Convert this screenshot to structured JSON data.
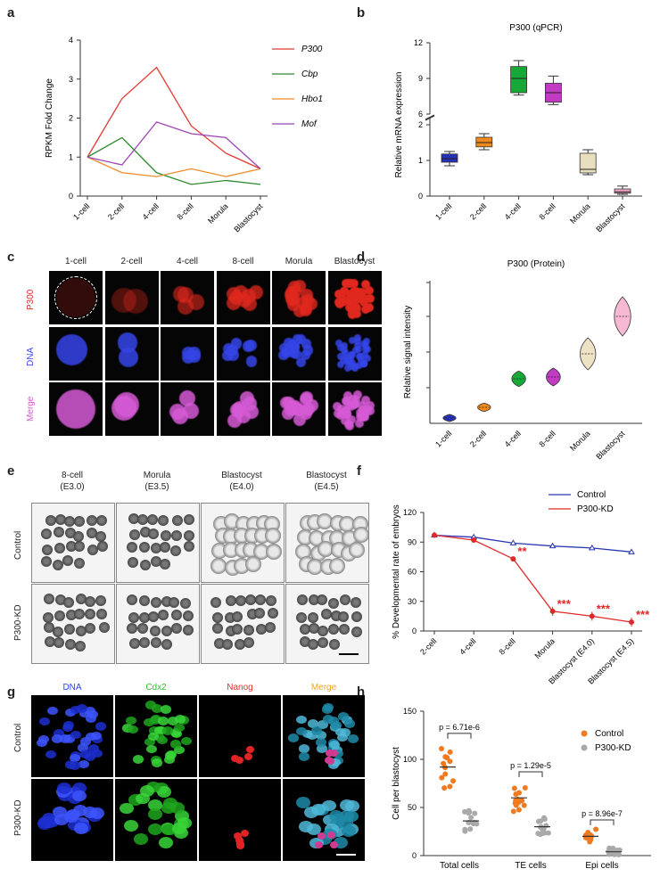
{
  "panels": {
    "a": "a",
    "b": "b",
    "c": "c",
    "d": "d",
    "e": "e",
    "f": "f",
    "g": "g",
    "h": "h"
  },
  "panel_a": {
    "chart_data": {
      "type": "line",
      "categories": [
        "1-cell",
        "2-cell",
        "4-cell",
        "8-cell",
        "Morula",
        "Blastocyst"
      ],
      "ylabel": "RPKM  Fold  Change",
      "ylim": [
        0,
        4
      ],
      "yticks": [
        0,
        1,
        2,
        3,
        4
      ],
      "series": [
        {
          "name": "P300",
          "color": "#e03b33",
          "values": [
            1.0,
            2.5,
            3.3,
            1.8,
            1.1,
            0.7
          ]
        },
        {
          "name": "Cbp",
          "color": "#2e8b2e",
          "values": [
            1.0,
            1.5,
            0.6,
            0.3,
            0.4,
            0.3
          ]
        },
        {
          "name": "Hbo1",
          "color": "#f08a2a",
          "values": [
            1.0,
            0.6,
            0.5,
            0.7,
            0.5,
            0.7
          ]
        },
        {
          "name": "Mof",
          "color": "#9b45b5",
          "values": [
            1.0,
            0.8,
            1.9,
            1.6,
            1.5,
            0.7
          ]
        }
      ],
      "legend": "top-right"
    }
  },
  "panel_b": {
    "chart_data": {
      "type": "box",
      "title": "P300  (qPCR)",
      "ylabel": "Relative mRNA expression",
      "categories": [
        "1-cell",
        "2-cell",
        "4-cell",
        "8-cell",
        "Morula",
        "Blastocyst"
      ],
      "yticks_lower": [
        0,
        1,
        2
      ],
      "yticks_upper": [
        6,
        9,
        12
      ],
      "axis_break": [
        2.2,
        6
      ],
      "boxes": [
        {
          "min": 0.85,
          "q1": 0.95,
          "median": 1.05,
          "q3": 1.18,
          "max": 1.25,
          "color": "#2630b8"
        },
        {
          "min": 1.3,
          "q1": 1.38,
          "median": 1.5,
          "q3": 1.65,
          "max": 1.75,
          "color": "#f0891c"
        },
        {
          "min": 7.6,
          "q1": 7.8,
          "median": 9.0,
          "q3": 10.0,
          "max": 10.5,
          "color": "#18a838"
        },
        {
          "min": 6.8,
          "q1": 7.0,
          "median": 7.8,
          "q3": 8.6,
          "max": 9.2,
          "color": "#c33bc3"
        },
        {
          "min": 0.6,
          "q1": 0.65,
          "median": 0.75,
          "q3": 1.2,
          "max": 1.3,
          "color": "#e8dfbf"
        },
        {
          "min": 0.05,
          "q1": 0.08,
          "median": 0.12,
          "q3": 0.2,
          "max": 0.28,
          "color": "#f2a6c8"
        }
      ]
    }
  },
  "panel_c": {
    "columns": [
      "1-cell",
      "2-cell",
      "4-cell",
      "8-cell",
      "Morula",
      "Blastocyst"
    ],
    "rows": [
      "P300",
      "DNA",
      "Merge"
    ]
  },
  "panel_d": {
    "chart_data": {
      "type": "violin",
      "title": "P300  (Protein)",
      "ylabel": "Relative signal intensity",
      "categories": [
        "1-cell",
        "2-cell",
        "4-cell",
        "8-cell",
        "Morula",
        "Blastocyst"
      ],
      "ylim": [
        0,
        4
      ],
      "values": [
        0.15,
        0.45,
        1.25,
        1.3,
        1.95,
        3.0
      ],
      "spread": [
        0.1,
        0.12,
        0.22,
        0.25,
        0.45,
        0.55
      ],
      "colors": [
        "#2630b8",
        "#f0891c",
        "#18a838",
        "#c33bc3",
        "#ede3c4",
        "#f6b8d3"
      ]
    }
  },
  "panel_e": {
    "columns": [
      {
        "stage": "8-cell",
        "day": "(E3.0)"
      },
      {
        "stage": "Morula",
        "day": "(E3.5)"
      },
      {
        "stage": "Blastocyst",
        "day": "(E4.0)"
      },
      {
        "stage": "Blastocyst",
        "day": "(E4.5)"
      }
    ],
    "rows": [
      "Control",
      "P300-KD"
    ]
  },
  "panel_f": {
    "chart_data": {
      "type": "line",
      "ylabel": "% Developmental rate of embryos",
      "categories": [
        "2-cell",
        "4-cell",
        "8-cell",
        "Morula",
        "Blastocyst (E4.0)",
        "Blastocyst (E4.5)"
      ],
      "ylim": [
        0,
        120
      ],
      "yticks": [
        0,
        30,
        60,
        90,
        120
      ],
      "series": [
        {
          "name": "Control",
          "color": "#2a36b0",
          "values": [
            97,
            95,
            89,
            86,
            84,
            80
          ]
        },
        {
          "name": "P300-KD",
          "color": "#e02828",
          "values": [
            97,
            92,
            73,
            20,
            15,
            9
          ]
        }
      ],
      "significance": [
        "",
        "",
        "**",
        "***",
        "***",
        "***"
      ],
      "legend": "top-right"
    }
  },
  "panel_g": {
    "columns": [
      "DNA",
      "Cdx2",
      "Nanog",
      "Merge"
    ],
    "column_colors": [
      "#2b3cff",
      "#2fbf2f",
      "#e23030",
      "#f2a124"
    ],
    "rows": [
      "Control",
      "P300-KD"
    ]
  },
  "panel_h": {
    "chart_data": {
      "type": "scatter",
      "ylabel": "Cell per blastocyst",
      "categories": [
        "Total cells",
        "TE cells",
        "Epi cells"
      ],
      "ylim": [
        0,
        150
      ],
      "yticks": [
        0,
        50,
        100,
        150
      ],
      "series": [
        {
          "name": "Control",
          "color": "#f07a20",
          "means": [
            92,
            60,
            20
          ]
        },
        {
          "name": "P300-KD",
          "color": "#a9a9a9",
          "means": [
            36,
            30,
            4
          ]
        }
      ],
      "pvalues": [
        "p = 6.71e-6",
        "p = 1.29e-5",
        "p = 8.96e-7"
      ],
      "legend": "top-right"
    }
  }
}
